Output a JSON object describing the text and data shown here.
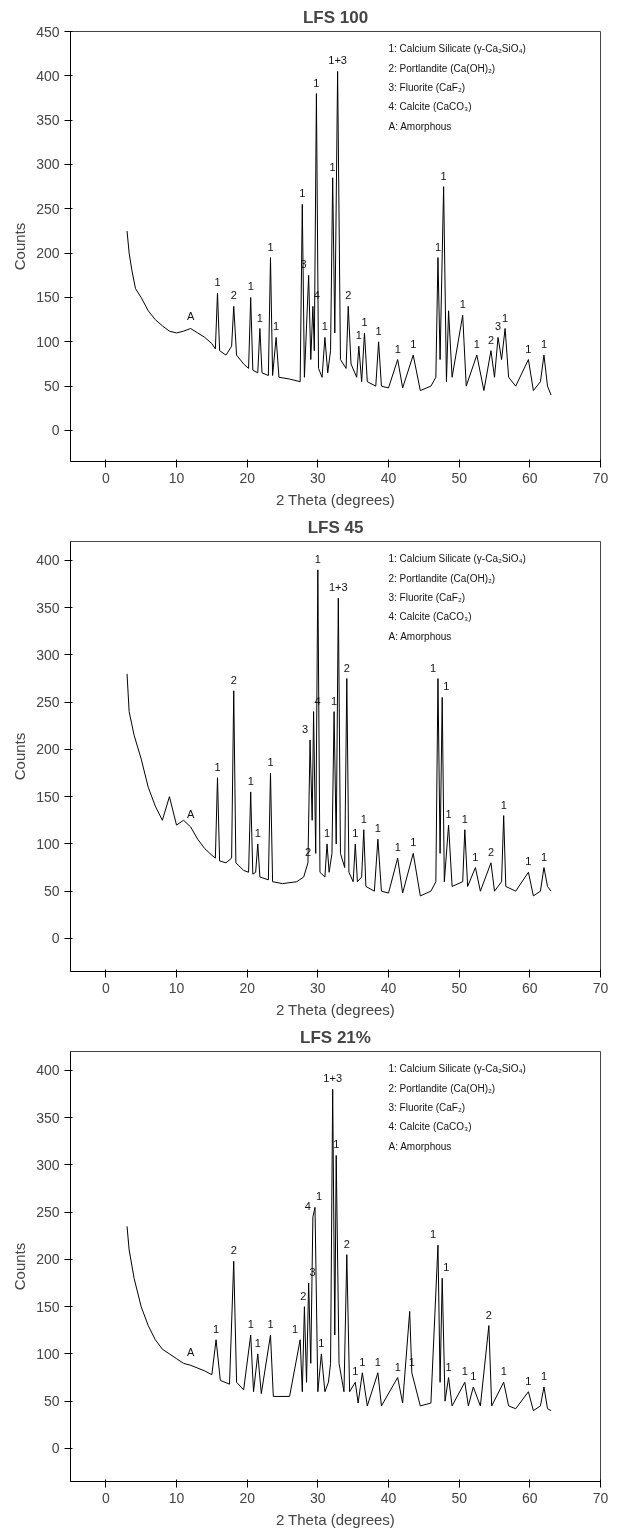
{
  "chart_data": [
    {
      "type": "line",
      "title": "LFS 100",
      "xlabel": "2 Theta (degrees)",
      "ylabel": "Counts",
      "xlim": [
        -5,
        70
      ],
      "ylim": [
        -35,
        450
      ],
      "xticks": [
        0,
        10,
        20,
        30,
        40,
        50,
        60,
        70
      ],
      "yticks": [
        0,
        50,
        100,
        150,
        200,
        250,
        300,
        350,
        400,
        450
      ],
      "grid": false,
      "marker": "none",
      "line_style": "solid",
      "series": [
        {
          "color": "#000000",
          "x": [
            3,
            3.3,
            3.7,
            4.2,
            5,
            6,
            7,
            8,
            9,
            10,
            11,
            12,
            13,
            14,
            15,
            15.5,
            15.8,
            16.1,
            17,
            17.8,
            18.1,
            18.5,
            19.5,
            20.2,
            20.5,
            20.8,
            21.5,
            21.8,
            22.1,
            23,
            23.3,
            23.6,
            24.1,
            24.5,
            26,
            27.5,
            27.8,
            28.1,
            28.7,
            29,
            29.3,
            29.5,
            29.8,
            30.1,
            30.6,
            31,
            31.4,
            31.8,
            32.1,
            32.4,
            32.8,
            33.2,
            34,
            34.3,
            34.7,
            35.5,
            35.8,
            36.2,
            36.6,
            37,
            38.2,
            38.6,
            39,
            40,
            41.3,
            42,
            43.5,
            44.5,
            46,
            46.7,
            47,
            47.3,
            47.8,
            48.2,
            48.5,
            49,
            50.5,
            51,
            52.5,
            53.5,
            54.5,
            55,
            55.5,
            56,
            56.5,
            57,
            58,
            59.8,
            60.5,
            61.5,
            62,
            62.5,
            63
          ],
          "values": [
            225,
            200,
            180,
            160,
            150,
            135,
            125,
            118,
            112,
            110,
            112,
            115,
            110,
            105,
            98,
            92,
            155,
            90,
            85,
            95,
            140,
            85,
            75,
            70,
            150,
            68,
            65,
            115,
            65,
            62,
            195,
            62,
            105,
            60,
            58,
            55,
            255,
            60,
            175,
            80,
            140,
            90,
            380,
            70,
            60,
            105,
            65,
            90,
            285,
            110,
            405,
            80,
            70,
            140,
            75,
            60,
            95,
            55,
            110,
            55,
            50,
            100,
            50,
            48,
            80,
            48,
            85,
            45,
            50,
            60,
            195,
            80,
            275,
            55,
            135,
            60,
            130,
            50,
            85,
            45,
            90,
            60,
            105,
            80,
            115,
            60,
            50,
            80,
            45,
            55,
            85,
            50,
            40
          ]
        }
      ],
      "annotations": [
        "1: Calcium Silicate (γ-Ca₂SiO₄)",
        "2: Portlandite (Ca(OH)₂)",
        "3: Fluorite (CaF₂)",
        "4: Calcite (CaCO₃)",
        "A: Amorphous",
        {
          "text": "A",
          "x": 12,
          "y": 115
        },
        {
          "text": "1",
          "x": 15.8,
          "y": 155
        },
        {
          "text": "2",
          "x": 18.1,
          "y": 140
        },
        {
          "text": "1",
          "x": 20.5,
          "y": 150
        },
        {
          "text": "1",
          "x": 21.8,
          "y": 115
        },
        {
          "text": "1",
          "x": 23.3,
          "y": 195
        },
        {
          "text": "1",
          "x": 24.1,
          "y": 105
        },
        {
          "text": "1",
          "x": 27.8,
          "y": 255
        },
        {
          "text": "3",
          "x": 28.7,
          "y": 175
        },
        {
          "text": "4",
          "x": 29.3,
          "y": 140
        },
        {
          "text": "1",
          "x": 29.8,
          "y": 380
        },
        {
          "text": "1",
          "x": 31,
          "y": 105
        },
        {
          "text": "1",
          "x": 32.1,
          "y": 285
        },
        {
          "text": "1+3",
          "x": 32.8,
          "y": 405
        },
        {
          "text": "2",
          "x": 34.3,
          "y": 140
        },
        {
          "text": "1",
          "x": 35.8,
          "y": 95
        },
        {
          "text": "1",
          "x": 36.6,
          "y": 110
        },
        {
          "text": "1",
          "x": 38.6,
          "y": 100
        },
        {
          "text": "1",
          "x": 41.3,
          "y": 80
        },
        {
          "text": "1",
          "x": 43.5,
          "y": 85
        },
        {
          "text": "1",
          "x": 47,
          "y": 195
        },
        {
          "text": "1",
          "x": 47.8,
          "y": 275
        },
        {
          "text": "1",
          "x": 50.5,
          "y": 130
        },
        {
          "text": "1",
          "x": 52.5,
          "y": 85
        },
        {
          "text": "2",
          "x": 54.5,
          "y": 90
        },
        {
          "text": "3",
          "x": 55.5,
          "y": 105
        },
        {
          "text": "1",
          "x": 56.5,
          "y": 115
        },
        {
          "text": "1",
          "x": 59.8,
          "y": 80
        },
        {
          "text": "1",
          "x": 62,
          "y": 85
        }
      ]
    },
    {
      "type": "line",
      "title": "LFS 45",
      "xlabel": "2 Theta (degrees)",
      "ylabel": "Counts",
      "xlim": [
        -5,
        70
      ],
      "ylim": [
        -35,
        420
      ],
      "xticks": [
        0,
        10,
        20,
        30,
        40,
        50,
        60,
        70
      ],
      "yticks": [
        0,
        50,
        100,
        150,
        200,
        250,
        300,
        350,
        400
      ],
      "grid": false,
      "marker": "none",
      "line_style": "solid",
      "series": [
        {
          "color": "#000000",
          "x": [
            3,
            3.3,
            4,
            5,
            6,
            7,
            8,
            9,
            10,
            11,
            12,
            13,
            14,
            15,
            15.5,
            15.8,
            16.1,
            17,
            17.8,
            18.1,
            18.4,
            19.5,
            20.2,
            20.5,
            20.8,
            21.2,
            21.5,
            21.8,
            23,
            23.3,
            23.6,
            25,
            27,
            28,
            28.6,
            28.9,
            29.2,
            29.4,
            29.7,
            30,
            30.3,
            31,
            31.3,
            31.6,
            32,
            32.3,
            32.6,
            32.9,
            33.2,
            33.8,
            34.1,
            34.4,
            35,
            35.3,
            35.6,
            36.2,
            36.5,
            36.8,
            38,
            38.5,
            39,
            40,
            41.3,
            42,
            43.5,
            44.5,
            46,
            46.7,
            47,
            47.3,
            47.6,
            47.9,
            48.5,
            49,
            50.5,
            50.8,
            51.2,
            52.3,
            53,
            54.5,
            55,
            56,
            56.3,
            56.6,
            58,
            59.8,
            60.5,
            61.5,
            62,
            62.5,
            63
          ],
          "values": [
            280,
            240,
            215,
            190,
            160,
            140,
            125,
            150,
            120,
            125,
            118,
            105,
            95,
            88,
            85,
            170,
            82,
            80,
            85,
            262,
            80,
            72,
            70,
            155,
            68,
            70,
            100,
            65,
            62,
            175,
            60,
            58,
            60,
            65,
            80,
            210,
            125,
            240,
            90,
            390,
            70,
            65,
            100,
            70,
            90,
            240,
            100,
            360,
            90,
            75,
            275,
            70,
            60,
            100,
            60,
            65,
            115,
            55,
            50,
            105,
            50,
            48,
            85,
            48,
            90,
            45,
            50,
            60,
            275,
            90,
            255,
            60,
            120,
            55,
            60,
            115,
            55,
            75,
            50,
            80,
            50,
            60,
            130,
            55,
            50,
            70,
            45,
            50,
            75,
            55,
            50
          ]
        }
      ],
      "annotations": [
        "1: Calcium Silicate (γ-Ca₂SiO₄)",
        "2: Portlandite (Ca(OH)₂)",
        "3: Fluorite (CaF₂)",
        "4: Calcite (CaCO₃)",
        "A: Amorphous",
        {
          "text": "A",
          "x": 12,
          "y": 118
        },
        {
          "text": "1",
          "x": 15.8,
          "y": 170
        },
        {
          "text": "2",
          "x": 18.1,
          "y": 262
        },
        {
          "text": "1",
          "x": 20.5,
          "y": 155
        },
        {
          "text": "1",
          "x": 21.5,
          "y": 100
        },
        {
          "text": "1",
          "x": 23.3,
          "y": 175
        },
        {
          "text": "2",
          "x": 28.6,
          "y": 80
        },
        {
          "text": "3",
          "x": 28.9,
          "y": 210
        },
        {
          "text": "4",
          "x": 29.4,
          "y": 240
        },
        {
          "text": "1",
          "x": 30,
          "y": 390
        },
        {
          "text": "1",
          "x": 31.3,
          "y": 100
        },
        {
          "text": "1",
          "x": 32.3,
          "y": 240
        },
        {
          "text": "1+3",
          "x": 32.9,
          "y": 360
        },
        {
          "text": "2",
          "x": 34.1,
          "y": 275
        },
        {
          "text": "1",
          "x": 35.3,
          "y": 100
        },
        {
          "text": "1",
          "x": 36.5,
          "y": 115
        },
        {
          "text": "1",
          "x": 38.5,
          "y": 105
        },
        {
          "text": "1",
          "x": 41.3,
          "y": 85
        },
        {
          "text": "1",
          "x": 43.5,
          "y": 90
        },
        {
          "text": "1",
          "x": 47,
          "y": 275
        },
        {
          "text": "1",
          "x": 47.6,
          "y": 255
        },
        {
          "text": "1",
          "x": 48.5,
          "y": 120
        },
        {
          "text": "1",
          "x": 50.8,
          "y": 115
        },
        {
          "text": "1",
          "x": 52.3,
          "y": 75
        },
        {
          "text": "2",
          "x": 54.5,
          "y": 80
        },
        {
          "text": "1",
          "x": 56.3,
          "y": 130
        },
        {
          "text": "1",
          "x": 59.8,
          "y": 70
        },
        {
          "text": "1",
          "x": 62,
          "y": 75
        }
      ]
    },
    {
      "type": "line",
      "title": "LFS 21%",
      "xlabel": "2 Theta (degrees)",
      "ylabel": "Counts",
      "xlim": [
        -5,
        70
      ],
      "ylim": [
        -35,
        420
      ],
      "xticks": [
        0,
        10,
        20,
        30,
        40,
        50,
        60,
        70
      ],
      "yticks": [
        0,
        50,
        100,
        150,
        200,
        250,
        300,
        350,
        400
      ],
      "grid": false,
      "marker": "none",
      "line_style": "solid",
      "series": [
        {
          "color": "#000000",
          "x": [
            3,
            3.3,
            4,
            5,
            6,
            7,
            8,
            9,
            10,
            11,
            12,
            13,
            14,
            15,
            15.6,
            16.2,
            17.5,
            18.1,
            18.5,
            19.5,
            20.5,
            20.9,
            21.5,
            22,
            23.3,
            23.7,
            26,
            27.5,
            27.8,
            28.1,
            28.4,
            28.7,
            29,
            29.3,
            29.6,
            30,
            30.5,
            31,
            31.5,
            31.8,
            32.1,
            32.4,
            32.6,
            33,
            33.7,
            34.1,
            34.5,
            35.3,
            35.7,
            36.3,
            37,
            38.5,
            39,
            41.3,
            42,
            43,
            43.3,
            44.5,
            46,
            47,
            47.3,
            47.6,
            48,
            48.5,
            49,
            50.8,
            51.3,
            52,
            53,
            54.2,
            54.6,
            56.3,
            57,
            58,
            59.8,
            60.5,
            61.5,
            62,
            62.5,
            63
          ],
          "values": [
            235,
            210,
            180,
            150,
            130,
            115,
            105,
            100,
            95,
            90,
            88,
            85,
            82,
            78,
            115,
            72,
            68,
            198,
            70,
            62,
            120,
            60,
            100,
            58,
            120,
            55,
            55,
            115,
            60,
            150,
            70,
            175,
            90,
            245,
            255,
            60,
            100,
            60,
            70,
            90,
            380,
            120,
            310,
            90,
            60,
            205,
            60,
            70,
            48,
            80,
            45,
            80,
            45,
            75,
            48,
            145,
            80,
            45,
            48,
            215,
            70,
            180,
            50,
            75,
            45,
            70,
            45,
            65,
            45,
            130,
            45,
            70,
            45,
            42,
            60,
            40,
            45,
            65,
            42,
            40
          ]
        }
      ],
      "annotations": [
        "1: Calcium Silicate (γ-Ca₂SiO₄)",
        "2: Portlandite (Ca(OH)₂)",
        "3: Fluorite (CaF₂)",
        "4: Calcite (CaCO₃)",
        "A: Amorphous",
        {
          "text": "A",
          "x": 12,
          "y": 88
        },
        {
          "text": "1",
          "x": 15.6,
          "y": 115
        },
        {
          "text": "2",
          "x": 18.1,
          "y": 198
        },
        {
          "text": "1",
          "x": 20.5,
          "y": 120
        },
        {
          "text": "1",
          "x": 21.5,
          "y": 100
        },
        {
          "text": "1",
          "x": 23.3,
          "y": 120
        },
        {
          "text": "1",
          "x": 27.5,
          "y": 115
        },
        {
          "text": "2",
          "x": 28.1,
          "y": 150
        },
        {
          "text": "3",
          "x": 28.7,
          "y": 175
        },
        {
          "text": "4",
          "x": 29.3,
          "y": 245
        },
        {
          "text": "1",
          "x": 29.6,
          "y": 255
        },
        {
          "text": "1",
          "x": 30.5,
          "y": 100
        },
        {
          "text": "1+3",
          "x": 32.1,
          "y": 380
        },
        {
          "text": "1",
          "x": 32.6,
          "y": 310
        },
        {
          "text": "2",
          "x": 34.1,
          "y": 205
        },
        {
          "text": "1",
          "x": 35.3,
          "y": 70
        },
        {
          "text": "1",
          "x": 36.3,
          "y": 80
        },
        {
          "text": "1",
          "x": 38.5,
          "y": 80
        },
        {
          "text": "1",
          "x": 41.3,
          "y": 75
        },
        {
          "text": "1",
          "x": 43.3,
          "y": 80
        },
        {
          "text": "1",
          "x": 47,
          "y": 215
        },
        {
          "text": "1",
          "x": 47.6,
          "y": 180
        },
        {
          "text": "1",
          "x": 48.5,
          "y": 75
        },
        {
          "text": "1",
          "x": 50.8,
          "y": 70
        },
        {
          "text": "1",
          "x": 52,
          "y": 65
        },
        {
          "text": "2",
          "x": 54.2,
          "y": 130
        },
        {
          "text": "1",
          "x": 56.3,
          "y": 70
        },
        {
          "text": "1",
          "x": 59.8,
          "y": 60
        },
        {
          "text": "1",
          "x": 62,
          "y": 65
        }
      ]
    }
  ]
}
